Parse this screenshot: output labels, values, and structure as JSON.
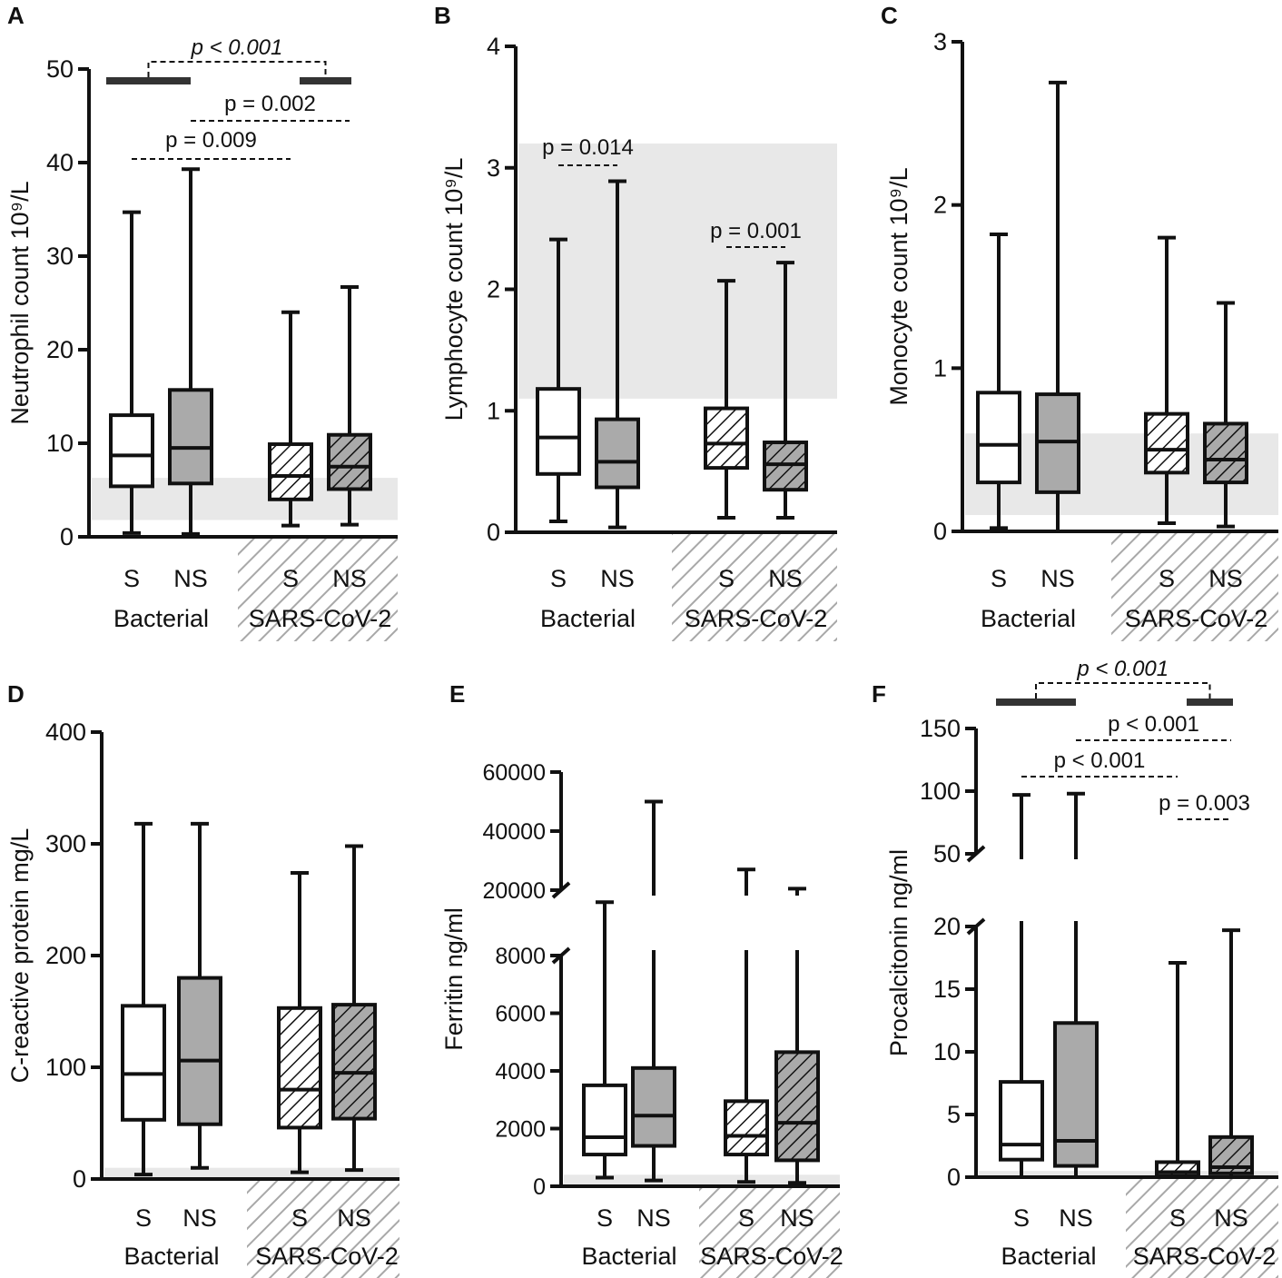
{
  "figure": {
    "categories": [
      "S",
      "NS",
      "S",
      "NS"
    ],
    "groups": [
      "Bacterial",
      "SARS-CoV-2"
    ],
    "category_fills": [
      "#ffffff",
      "#aaaaaa",
      "#ffffff",
      "#aaaaaa"
    ],
    "category_hatched": [
      false,
      false,
      true,
      true
    ],
    "reference_band_color": "#e8e8e8",
    "stroke_color": "#111111"
  },
  "chart_data": [
    {
      "panel": "A",
      "type": "box",
      "ylabel": "Neutrophil count 10⁹/L",
      "ylim": [
        0,
        50
      ],
      "ticks": [
        0,
        10,
        20,
        30,
        40,
        50
      ],
      "reference_range": [
        1.8,
        6.3
      ],
      "boxes": [
        {
          "category": "S",
          "group": "Bacterial",
          "min": 0.4,
          "q1": 5.4,
          "median": 8.7,
          "q3": 13.0,
          "max": 34.7
        },
        {
          "category": "NS",
          "group": "Bacterial",
          "min": 0.3,
          "q1": 5.7,
          "median": 9.5,
          "q3": 15.7,
          "max": 39.3
        },
        {
          "category": "S",
          "group": "SARS-CoV-2",
          "min": 1.2,
          "q1": 4.0,
          "median": 6.5,
          "q3": 9.9,
          "max": 24.0
        },
        {
          "category": "NS",
          "group": "SARS-CoV-2",
          "min": 1.3,
          "q1": 5.1,
          "median": 7.5,
          "q3": 10.9,
          "max": 26.7
        }
      ],
      "comparisons": [
        {
          "label": "p = 0.009",
          "from": 0,
          "to": 2,
          "italic": false
        },
        {
          "label": "p = 0.002",
          "from": 1,
          "to": 3,
          "italic": false
        },
        {
          "label": "p < 0.001",
          "from": "Bacterial",
          "to": "SARS-CoV-2",
          "italic": true
        }
      ]
    },
    {
      "panel": "B",
      "type": "box",
      "ylabel": "Lymphocyte count 10⁹/L",
      "ylim": [
        0,
        4
      ],
      "ticks": [
        0,
        1,
        2,
        3,
        4
      ],
      "reference_range": [
        1.1,
        3.2
      ],
      "boxes": [
        {
          "category": "S",
          "group": "Bacterial",
          "min": 0.09,
          "q1": 0.48,
          "median": 0.78,
          "q3": 1.18,
          "max": 2.41
        },
        {
          "category": "NS",
          "group": "Bacterial",
          "min": 0.04,
          "q1": 0.37,
          "median": 0.58,
          "q3": 0.93,
          "max": 2.89
        },
        {
          "category": "S",
          "group": "SARS-CoV-2",
          "min": 0.12,
          "q1": 0.53,
          "median": 0.73,
          "q3": 1.02,
          "max": 2.07
        },
        {
          "category": "NS",
          "group": "SARS-CoV-2",
          "min": 0.12,
          "q1": 0.35,
          "median": 0.56,
          "q3": 0.74,
          "max": 2.22
        }
      ],
      "comparisons": [
        {
          "label": "p = 0.014",
          "from": 0,
          "to": 1,
          "italic": false
        },
        {
          "label": "p = 0.001",
          "from": 2,
          "to": 3,
          "italic": false
        }
      ]
    },
    {
      "panel": "C",
      "type": "box",
      "ylabel": "Monocyte count 10⁹/L",
      "ylim": [
        0,
        3
      ],
      "ticks": [
        0,
        1,
        2,
        3
      ],
      "reference_range": [
        0.1,
        0.6
      ],
      "boxes": [
        {
          "category": "S",
          "group": "Bacterial",
          "min": 0.02,
          "q1": 0.3,
          "median": 0.53,
          "q3": 0.85,
          "max": 1.82
        },
        {
          "category": "NS",
          "group": "Bacterial",
          "min": 0.0,
          "q1": 0.24,
          "median": 0.55,
          "q3": 0.84,
          "max": 2.75
        },
        {
          "category": "S",
          "group": "SARS-CoV-2",
          "min": 0.05,
          "q1": 0.36,
          "median": 0.5,
          "q3": 0.72,
          "max": 1.8
        },
        {
          "category": "NS",
          "group": "SARS-CoV-2",
          "min": 0.03,
          "q1": 0.3,
          "median": 0.44,
          "q3": 0.66,
          "max": 1.4
        }
      ],
      "comparisons": []
    },
    {
      "panel": "D",
      "type": "box",
      "ylabel": "C-reactive protein mg/L",
      "ylim": [
        0,
        400
      ],
      "ticks": [
        0,
        100,
        200,
        300,
        400
      ],
      "reference_range": [
        0,
        10
      ],
      "boxes": [
        {
          "category": "S",
          "group": "Bacterial",
          "min": 4,
          "q1": 53,
          "median": 94,
          "q3": 155,
          "max": 318
        },
        {
          "category": "NS",
          "group": "Bacterial",
          "min": 10,
          "q1": 49,
          "median": 106,
          "q3": 180,
          "max": 318
        },
        {
          "category": "S",
          "group": "SARS-CoV-2",
          "min": 6,
          "q1": 46,
          "median": 80,
          "q3": 153,
          "max": 274
        },
        {
          "category": "NS",
          "group": "SARS-CoV-2",
          "min": 8,
          "q1": 54,
          "median": 95,
          "q3": 156,
          "max": 298
        }
      ],
      "comparisons": []
    },
    {
      "panel": "E",
      "type": "box",
      "ylabel": "Ferritin ng/ml",
      "ylim": [
        0,
        60000
      ],
      "ticks_lower": [
        0,
        2000,
        4000,
        6000,
        8000
      ],
      "ticks_upper": [
        20000,
        40000,
        60000
      ],
      "axis_break": [
        8000,
        20000
      ],
      "reference_range": [
        0,
        400
      ],
      "boxes": [
        {
          "category": "S",
          "group": "Bacterial",
          "min": 300,
          "q1": 1100,
          "median": 1700,
          "q3": 3500,
          "max": 17800
        },
        {
          "category": "NS",
          "group": "Bacterial",
          "min": 200,
          "q1": 1400,
          "median": 2450,
          "q3": 4100,
          "max": 50000
        },
        {
          "category": "S",
          "group": "SARS-CoV-2",
          "min": 150,
          "q1": 1100,
          "median": 1750,
          "q3": 2950,
          "max": 27000
        },
        {
          "category": "NS",
          "group": "SARS-CoV-2",
          "min": 120,
          "q1": 900,
          "median": 2200,
          "q3": 4650,
          "max": 20500
        }
      ],
      "comparisons": []
    },
    {
      "panel": "F",
      "type": "box",
      "ylabel": "Procalcitonin ng/ml",
      "ylim": [
        0,
        150
      ],
      "ticks_lower": [
        0,
        5,
        10,
        15,
        20
      ],
      "ticks_upper": [
        50,
        100,
        150
      ],
      "axis_break": [
        20,
        50
      ],
      "reference_range": [
        0,
        0.5
      ],
      "boxes": [
        {
          "category": "S",
          "group": "Bacterial",
          "min": 0,
          "q1": 1.4,
          "median": 2.6,
          "q3": 7.6,
          "max": 97
        },
        {
          "category": "NS",
          "group": "Bacterial",
          "min": 0,
          "q1": 0.9,
          "median": 2.9,
          "q3": 12.3,
          "max": 98
        },
        {
          "category": "S",
          "group": "SARS-CoV-2",
          "min": 0,
          "q1": 0.1,
          "median": 0.4,
          "q3": 1.2,
          "max": 17.1
        },
        {
          "category": "NS",
          "group": "SARS-CoV-2",
          "min": 0,
          "q1": 0.3,
          "median": 0.8,
          "q3": 3.2,
          "max": 19.7
        }
      ],
      "comparisons": [
        {
          "label": "p < 0.001",
          "from": 0,
          "to": 2,
          "italic": false
        },
        {
          "label": "p < 0.001",
          "from": 1,
          "to": 3,
          "italic": false
        },
        {
          "label": "p = 0.003",
          "from": 2,
          "to": 3,
          "italic": false
        },
        {
          "label": "p < 0.001",
          "from": "Bacterial",
          "to": "SARS-CoV-2",
          "italic": true
        }
      ]
    }
  ]
}
